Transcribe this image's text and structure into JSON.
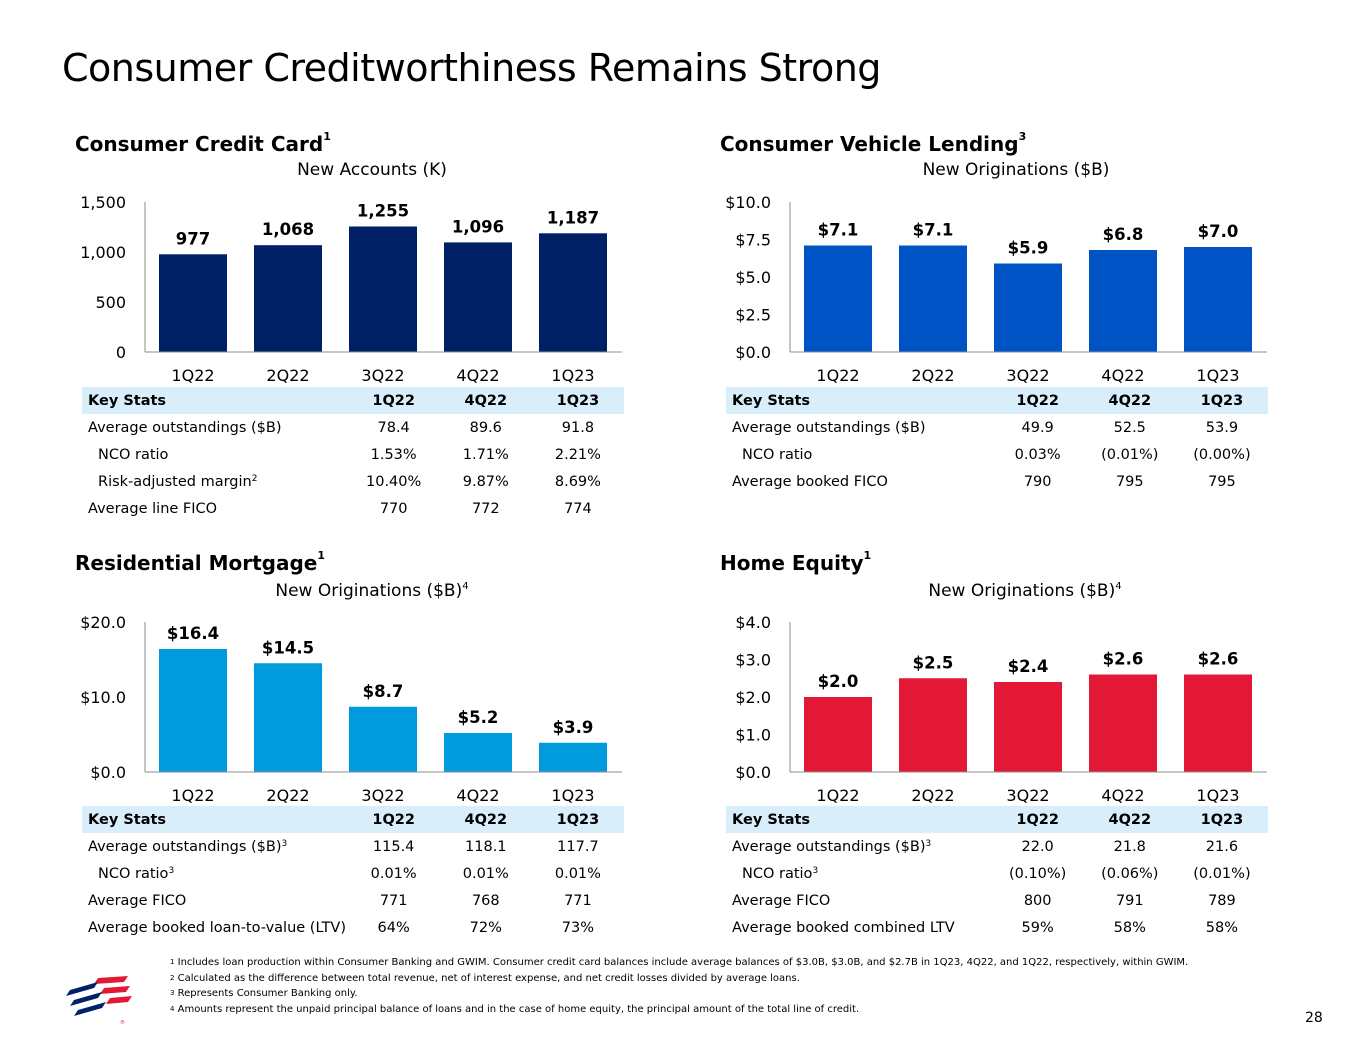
{
  "page": {
    "title": "Consumer Creditworthiness Remains Strong",
    "page_number": "28"
  },
  "colors": {
    "card": "#002066",
    "vehicle": "#0053c4",
    "mortgage": "#009ade",
    "home_equity": "#e31837",
    "header_bg": "#d9eefb"
  },
  "logo": {
    "icon": "bank-flag-logo-icon"
  },
  "sections": {
    "card": {
      "title": "Consumer Credit Card",
      "title_sup": "1",
      "subtitle": "New Accounts (K)",
      "subtitle_sup": ""
    },
    "vehicle": {
      "title": "Consumer Vehicle Lending",
      "title_sup": "3",
      "subtitle": "New Originations ($B)",
      "subtitle_sup": ""
    },
    "mortgage": {
      "title": "Residential Mortgage",
      "title_sup": "1",
      "subtitle": "New Originations ($B)",
      "subtitle_sup": "4"
    },
    "home_equity": {
      "title": "Home Equity",
      "title_sup": "1",
      "subtitle": "New Originations ($B)",
      "subtitle_sup": "4"
    }
  },
  "chart_data": [
    {
      "id": "card",
      "type": "bar",
      "title": "New Accounts (K)",
      "categories": [
        "1Q22",
        "2Q22",
        "3Q22",
        "4Q22",
        "1Q23"
      ],
      "values": [
        977,
        1068,
        1255,
        1096,
        1187
      ],
      "labels": [
        "977",
        "1,068",
        "1,255",
        "1,096",
        "1,187"
      ],
      "yticks": [
        0,
        500,
        1000,
        1500
      ],
      "ytick_labels": [
        "0",
        "500",
        "1,000",
        "1,500"
      ],
      "ylim": [
        0,
        1500
      ],
      "color": "#002066"
    },
    {
      "id": "vehicle",
      "type": "bar",
      "title": "New Originations ($B)",
      "categories": [
        "1Q22",
        "2Q22",
        "3Q22",
        "4Q22",
        "1Q23"
      ],
      "values": [
        7.1,
        7.1,
        5.9,
        6.8,
        7.0
      ],
      "labels": [
        "$7.1",
        "$7.1",
        "$5.9",
        "$6.8",
        "$7.0"
      ],
      "yticks": [
        0,
        2.5,
        5,
        7.5,
        10
      ],
      "ytick_labels": [
        "$0.0",
        "$2.5",
        "$5.0",
        "$7.5",
        "$10.0"
      ],
      "ylim": [
        0,
        10
      ],
      "color": "#0053c4"
    },
    {
      "id": "mortgage",
      "type": "bar",
      "title": "New Originations ($B)",
      "categories": [
        "1Q22",
        "2Q22",
        "3Q22",
        "4Q22",
        "1Q23"
      ],
      "values": [
        16.4,
        14.5,
        8.7,
        5.2,
        3.9
      ],
      "labels": [
        "$16.4",
        "$14.5",
        "$8.7",
        "$5.2",
        "$3.9"
      ],
      "yticks": [
        0,
        10,
        20
      ],
      "ytick_labels": [
        "$0.0",
        "$10.0",
        "$20.0"
      ],
      "ylim": [
        0,
        20
      ],
      "color": "#009ade"
    },
    {
      "id": "home_equity",
      "type": "bar",
      "title": "New Originations ($B)",
      "categories": [
        "1Q22",
        "2Q22",
        "3Q22",
        "4Q22",
        "1Q23"
      ],
      "values": [
        2.0,
        2.5,
        2.4,
        2.6,
        2.6
      ],
      "labels": [
        "$2.0",
        "$2.5",
        "$2.4",
        "$2.6",
        "$2.6"
      ],
      "yticks": [
        0,
        1,
        2,
        3,
        4
      ],
      "ytick_labels": [
        "$0.0",
        "$1.0",
        "$2.0",
        "$3.0",
        "$4.0"
      ],
      "ylim": [
        0,
        4
      ],
      "color": "#e31837"
    }
  ],
  "tables": {
    "card": {
      "header": [
        "Key Stats",
        "1Q22",
        "4Q22",
        "1Q23"
      ],
      "rows": [
        {
          "label": "Average outstandings ($B)",
          "sup": "",
          "indent": false,
          "values": [
            "78.4",
            "89.6",
            "91.8"
          ]
        },
        {
          "label": "NCO ratio",
          "sup": "",
          "indent": true,
          "values": [
            "1.53%",
            "1.71%",
            "2.21%"
          ]
        },
        {
          "label": "Risk-adjusted margin",
          "sup": "2",
          "indent": true,
          "values": [
            "10.40%",
            "9.87%",
            "8.69%"
          ]
        },
        {
          "label": "Average line FICO",
          "sup": "",
          "indent": false,
          "values": [
            "770",
            "772",
            "774"
          ]
        }
      ]
    },
    "vehicle": {
      "header": [
        "Key Stats",
        "1Q22",
        "4Q22",
        "1Q23"
      ],
      "rows": [
        {
          "label": "Average outstandings ($B)",
          "sup": "",
          "indent": false,
          "values": [
            "49.9",
            "52.5",
            "53.9"
          ]
        },
        {
          "label": "NCO ratio",
          "sup": "",
          "indent": true,
          "values": [
            "0.03%",
            "(0.01%)",
            "(0.00%)"
          ]
        },
        {
          "label": "Average booked FICO",
          "sup": "",
          "indent": false,
          "values": [
            "790",
            "795",
            "795"
          ]
        }
      ]
    },
    "mortgage": {
      "header": [
        "Key Stats",
        "1Q22",
        "4Q22",
        "1Q23"
      ],
      "rows": [
        {
          "label": "Average outstandings ($B)",
          "sup": "3",
          "indent": false,
          "values": [
            "115.4",
            "118.1",
            "117.7"
          ]
        },
        {
          "label": "NCO ratio",
          "sup": "3",
          "indent": true,
          "values": [
            "0.01%",
            "0.01%",
            "0.01%"
          ]
        },
        {
          "label": "Average FICO",
          "sup": "",
          "indent": false,
          "values": [
            "771",
            "768",
            "771"
          ]
        },
        {
          "label": "Average booked loan-to-value (LTV)",
          "sup": "",
          "indent": false,
          "values": [
            "64%",
            "72%",
            "73%"
          ]
        }
      ]
    },
    "home_equity": {
      "header": [
        "Key Stats",
        "1Q22",
        "4Q22",
        "1Q23"
      ],
      "rows": [
        {
          "label": "Average outstandings ($B)",
          "sup": "3",
          "indent": false,
          "values": [
            "22.0",
            "21.8",
            "21.6"
          ]
        },
        {
          "label": "NCO ratio",
          "sup": "3",
          "indent": true,
          "values": [
            "(0.10%)",
            "(0.06%)",
            "(0.01%)"
          ]
        },
        {
          "label": "Average FICO",
          "sup": "",
          "indent": false,
          "values": [
            "800",
            "791",
            "789"
          ]
        },
        {
          "label": "Average booked combined LTV",
          "sup": "",
          "indent": false,
          "values": [
            "59%",
            "58%",
            "58%"
          ]
        }
      ]
    }
  },
  "footnotes": [
    {
      "num": "1",
      "text": "Includes loan production within Consumer Banking and GWIM. Consumer credit card balances include average balances of $3.0B, $3.0B, and $2.7B in 1Q23, 4Q22, and 1Q22, respectively, within GWIM."
    },
    {
      "num": "2",
      "text": "Calculated as the difference between total revenue, net of interest expense, and net credit losses divided by average loans."
    },
    {
      "num": "3",
      "text": "Represents Consumer Banking only."
    },
    {
      "num": "4",
      "text": "Amounts represent the unpaid principal balance of loans and in the case of home equity, the principal amount of the total line of credit."
    }
  ]
}
